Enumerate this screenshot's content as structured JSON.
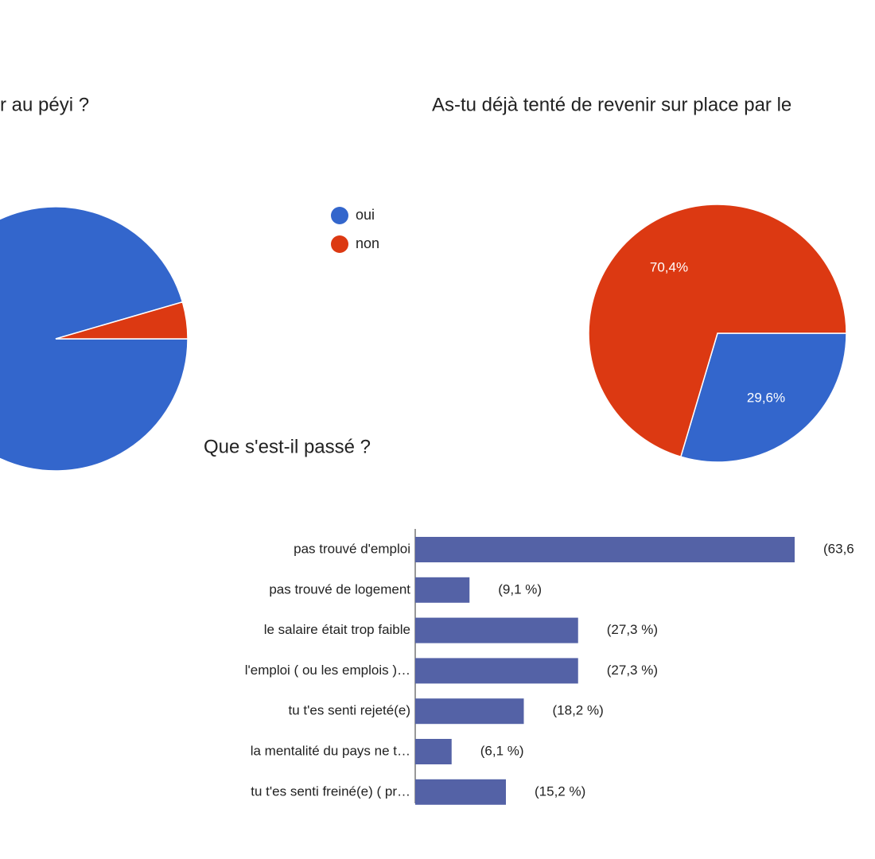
{
  "chart_data": [
    {
      "type": "pie",
      "title": "r au péyi ?",
      "categories": [
        "oui",
        "non"
      ],
      "values": [
        95.5,
        4.5
      ],
      "colors": [
        "#3366cc",
        "#dc3912"
      ],
      "legend": "right"
    },
    {
      "type": "pie",
      "title": "As-tu déjà tenté de revenir sur place par le",
      "values": [
        29.6,
        70.4
      ],
      "value_labels": [
        "29,6%",
        "70,4%"
      ],
      "colors": [
        "#3366cc",
        "#dc3912"
      ]
    },
    {
      "type": "barh",
      "title": "Que s'est-il passé ?",
      "categories": [
        "pas trouvé d'emploi",
        "pas trouvé de logement",
        "le salaire était trop faible",
        "l'emploi ( ou les emplois )…",
        "tu t'es senti rejeté(e)",
        "la mentalité du pays ne t…",
        "tu t'es senti freiné(e) ( pr…"
      ],
      "values": [
        63.6,
        9.1,
        27.3,
        27.3,
        18.2,
        6.1,
        15.2
      ],
      "value_labels": [
        "(63,6",
        "(9,1 %)",
        "(27,3 %)",
        "(27,3 %)",
        "(18,2 %)",
        "(6,1 %)",
        "(15,2 %)"
      ],
      "color": "#5462a6",
      "xlim": [
        0,
        80
      ]
    }
  ]
}
